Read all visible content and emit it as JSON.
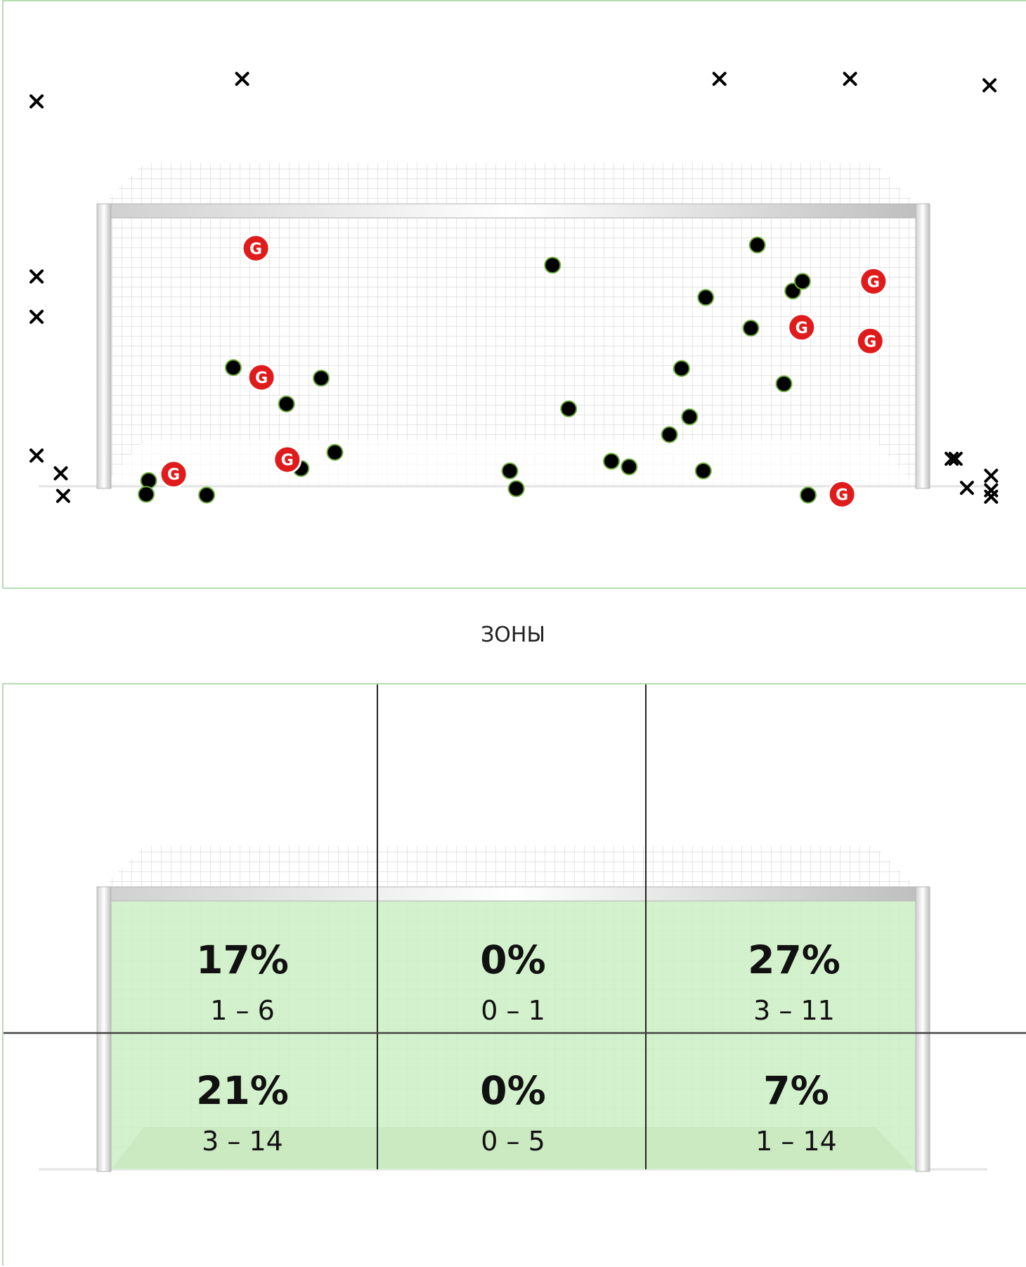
{
  "zones_title": "ЗОНЫ",
  "goal_label": "G",
  "colors": {
    "panel_border": "#b7dcb2",
    "zone_fill": "#cdeec4",
    "goal_marker": "#e01b1b",
    "saved_marker": "#000000",
    "saved_marker_outline": "#6fae3f",
    "miss_marker": "#000000"
  },
  "legend_icons": {
    "goal": "goal-marker-icon",
    "saved": "saved-shot-icon",
    "miss": "missed-shot-icon"
  },
  "zones": [
    {
      "id": "top-left",
      "percent": "17%",
      "count": "1 – 6"
    },
    {
      "id": "top-center",
      "percent": "0%",
      "count": "0 – 1"
    },
    {
      "id": "top-right",
      "percent": "27%",
      "count": "3 – 11"
    },
    {
      "id": "bottom-left",
      "percent": "21%",
      "count": "3 – 14"
    },
    {
      "id": "bottom-center",
      "percent": "0%",
      "count": "0 – 5"
    },
    {
      "id": "bottom-right",
      "percent": "7%",
      "count": "1 – 14"
    }
  ]
}
